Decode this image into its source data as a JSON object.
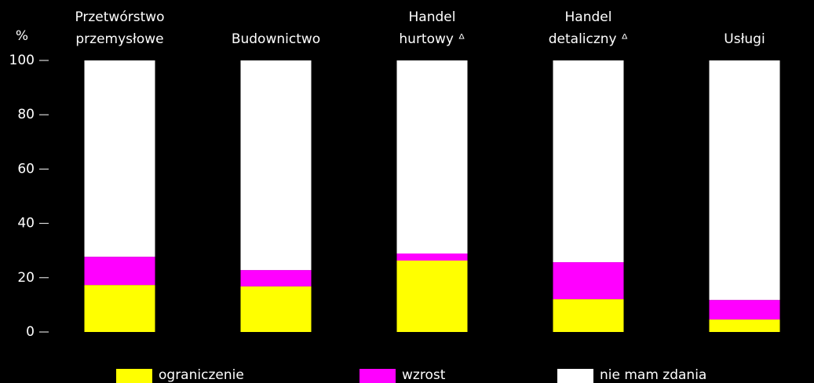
{
  "chart_data": {
    "type": "stacked_bar",
    "y_label": "%",
    "categories": [
      "Przetwórstwo\nprzemysłowe",
      "Budownictwo",
      "Handel\nhurtowy ᐞ",
      "Handel\ndetaliczny ᐞ",
      "Usługi"
    ],
    "series": [
      {
        "name": "ograniczenie",
        "color": "#ffff00",
        "values": [
          17.3,
          16.8,
          26.3,
          12.1,
          4.6
        ]
      },
      {
        "name": "wzrost",
        "color": "#ff00ff",
        "values": [
          10.4,
          6.0,
          2.6,
          13.6,
          7.2
        ]
      },
      {
        "name": "nie mam zdania",
        "color": "#ffffff",
        "values": [
          72.3,
          77.2,
          71.1,
          74.3,
          88.2
        ]
      }
    ],
    "ylim": [
      0,
      100
    ],
    "yticks": [
      0,
      20,
      40,
      60,
      80,
      100
    ],
    "legend": "bottom"
  }
}
